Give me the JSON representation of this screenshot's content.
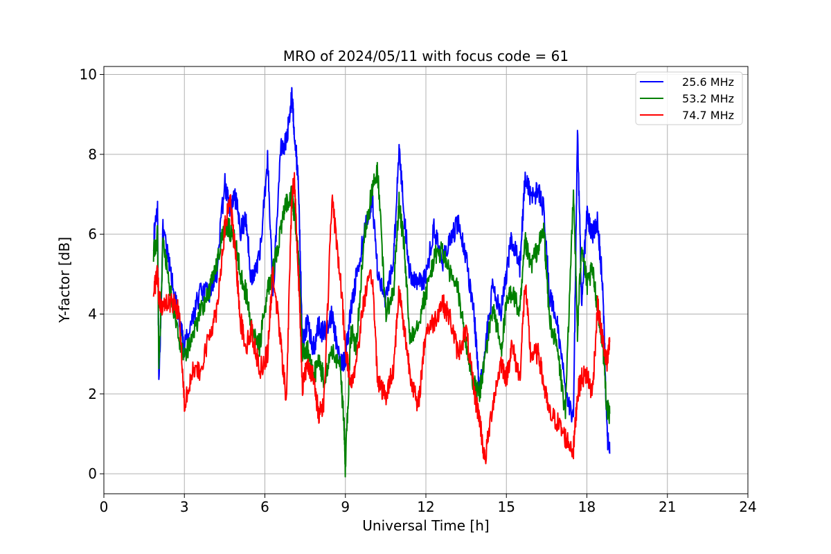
{
  "chart_data": {
    "type": "line",
    "title": "MRO of 2024/05/11 with focus code = 61",
    "xlabel": "Universal Time [h]",
    "ylabel": "Y-factor [dB]",
    "xlim": [
      0,
      24
    ],
    "ylim": [
      -0.5,
      10.2
    ],
    "xticks": [
      0,
      3,
      6,
      9,
      12,
      15,
      18,
      21,
      24
    ],
    "yticks": [
      0,
      2,
      4,
      6,
      8,
      10
    ],
    "grid": true,
    "legend_position": "top-right",
    "series": [
      {
        "name": "25.6 MHz",
        "color": "#0000ff",
        "x": [
          1.85,
          2.0,
          2.05,
          2.2,
          2.5,
          2.8,
          3.0,
          3.3,
          3.6,
          3.9,
          4.2,
          4.5,
          4.7,
          4.9,
          5.1,
          5.3,
          5.5,
          5.8,
          6.1,
          6.3,
          6.6,
          6.8,
          7.0,
          7.1,
          7.25,
          7.4,
          7.6,
          7.8,
          8.0,
          8.2,
          8.5,
          8.8,
          9.0,
          9.2,
          9.4,
          9.7,
          10.0,
          10.2,
          10.5,
          10.8,
          11.0,
          11.2,
          11.4,
          11.7,
          12.0,
          12.3,
          12.6,
          12.9,
          13.2,
          13.5,
          13.8,
          14.0,
          14.2,
          14.5,
          14.8,
          15.0,
          15.2,
          15.5,
          15.7,
          15.9,
          16.2,
          16.4,
          16.6,
          16.9,
          17.2,
          17.5,
          17.65,
          17.8,
          18.0,
          18.2,
          18.4,
          18.6,
          18.75,
          18.85
        ],
        "y": [
          5.8,
          6.8,
          2.1,
          6.1,
          5.0,
          3.8,
          3.2,
          3.9,
          4.6,
          4.5,
          5.0,
          7.3,
          6.6,
          6.9,
          6.1,
          6.4,
          4.8,
          5.4,
          7.9,
          4.5,
          8.2,
          8.3,
          9.5,
          8.6,
          7.3,
          3.3,
          3.8,
          3.1,
          3.7,
          3.5,
          4.0,
          2.7,
          2.9,
          4.1,
          4.9,
          6.0,
          6.9,
          5.1,
          4.3,
          5.4,
          8.2,
          6.4,
          5.0,
          4.8,
          4.9,
          6.2,
          5.3,
          5.8,
          6.3,
          5.4,
          4.0,
          2.0,
          3.1,
          4.7,
          4.1,
          5.0,
          5.9,
          5.2,
          7.5,
          6.9,
          7.1,
          6.6,
          4.5,
          3.7,
          2.2,
          1.3,
          8.7,
          4.3,
          6.5,
          6.0,
          6.3,
          4.6,
          1.0,
          0.5
        ]
      },
      {
        "name": "53.2 MHz",
        "color": "#008000",
        "x": [
          1.85,
          2.0,
          2.05,
          2.2,
          2.5,
          2.8,
          3.0,
          3.3,
          3.6,
          3.9,
          4.2,
          4.5,
          4.7,
          4.9,
          5.1,
          5.3,
          5.5,
          5.8,
          6.1,
          6.3,
          6.6,
          6.8,
          7.0,
          7.1,
          7.25,
          7.4,
          7.6,
          7.8,
          8.0,
          8.2,
          8.5,
          8.8,
          8.95,
          9.0,
          9.2,
          9.4,
          9.7,
          10.0,
          10.2,
          10.5,
          10.8,
          11.0,
          11.2,
          11.4,
          11.7,
          12.0,
          12.3,
          12.6,
          12.9,
          13.2,
          13.5,
          13.8,
          14.0,
          14.2,
          14.5,
          14.8,
          15.0,
          15.2,
          15.5,
          15.7,
          15.9,
          16.2,
          16.4,
          16.6,
          16.9,
          17.2,
          17.5,
          17.65,
          17.8,
          18.0,
          18.2,
          18.4,
          18.6,
          18.75,
          18.85
        ],
        "y": [
          5.5,
          6.0,
          2.6,
          5.8,
          4.5,
          3.4,
          3.0,
          3.4,
          4.1,
          4.5,
          5.3,
          6.2,
          6.1,
          5.8,
          5.0,
          4.5,
          3.6,
          3.2,
          4.6,
          5.1,
          6.1,
          6.8,
          7.0,
          6.5,
          5.4,
          3.0,
          3.1,
          2.4,
          2.8,
          2.4,
          3.0,
          2.8,
          1.2,
          0.1,
          3.6,
          3.2,
          5.9,
          7.1,
          7.6,
          4.0,
          4.6,
          6.8,
          5.6,
          3.4,
          3.8,
          4.5,
          5.4,
          5.6,
          5.0,
          4.6,
          3.2,
          2.2,
          2.0,
          2.9,
          4.2,
          3.1,
          4.2,
          4.6,
          4.0,
          5.8,
          5.2,
          5.7,
          6.1,
          3.9,
          3.1,
          1.5,
          7.2,
          3.5,
          5.8,
          4.7,
          5.1,
          4.2,
          3.2,
          1.6,
          1.5
        ]
      },
      {
        "name": "74.7 MHz",
        "color": "#ff0000",
        "x": [
          1.85,
          2.0,
          2.05,
          2.2,
          2.5,
          2.8,
          3.0,
          3.3,
          3.6,
          3.9,
          4.2,
          4.5,
          4.7,
          4.9,
          5.1,
          5.3,
          5.5,
          5.8,
          6.1,
          6.3,
          6.6,
          6.8,
          7.0,
          7.1,
          7.25,
          7.4,
          7.6,
          7.8,
          8.0,
          8.2,
          8.5,
          8.8,
          9.0,
          9.2,
          9.4,
          9.7,
          10.0,
          10.2,
          10.5,
          10.8,
          11.0,
          11.2,
          11.4,
          11.7,
          12.0,
          12.3,
          12.6,
          12.9,
          13.2,
          13.5,
          13.8,
          14.0,
          14.2,
          14.5,
          14.8,
          15.0,
          15.2,
          15.5,
          15.7,
          15.9,
          16.2,
          16.4,
          16.6,
          16.9,
          17.2,
          17.5,
          17.65,
          17.8,
          18.0,
          18.2,
          18.4,
          18.6,
          18.75,
          18.85
        ],
        "y": [
          4.6,
          5.0,
          4.4,
          4.2,
          4.3,
          4.1,
          1.8,
          2.6,
          2.5,
          3.4,
          4.1,
          6.1,
          6.9,
          5.5,
          3.8,
          3.2,
          3.6,
          2.6,
          3.0,
          5.1,
          3.2,
          1.8,
          6.9,
          7.4,
          5.0,
          2.2,
          2.8,
          2.4,
          1.5,
          1.8,
          6.9,
          5.0,
          3.2,
          2.2,
          2.8,
          4.4,
          5.0,
          2.4,
          1.9,
          2.7,
          4.6,
          3.6,
          2.6,
          1.6,
          3.6,
          3.8,
          4.3,
          3.9,
          3.0,
          3.6,
          2.0,
          1.4,
          0.3,
          1.8,
          2.8,
          2.4,
          3.2,
          2.4,
          4.8,
          3.0,
          3.0,
          2.2,
          1.5,
          1.3,
          0.9,
          0.6,
          2.0,
          2.4,
          2.5,
          2.0,
          4.2,
          3.3,
          2.7,
          3.3
        ]
      }
    ]
  }
}
